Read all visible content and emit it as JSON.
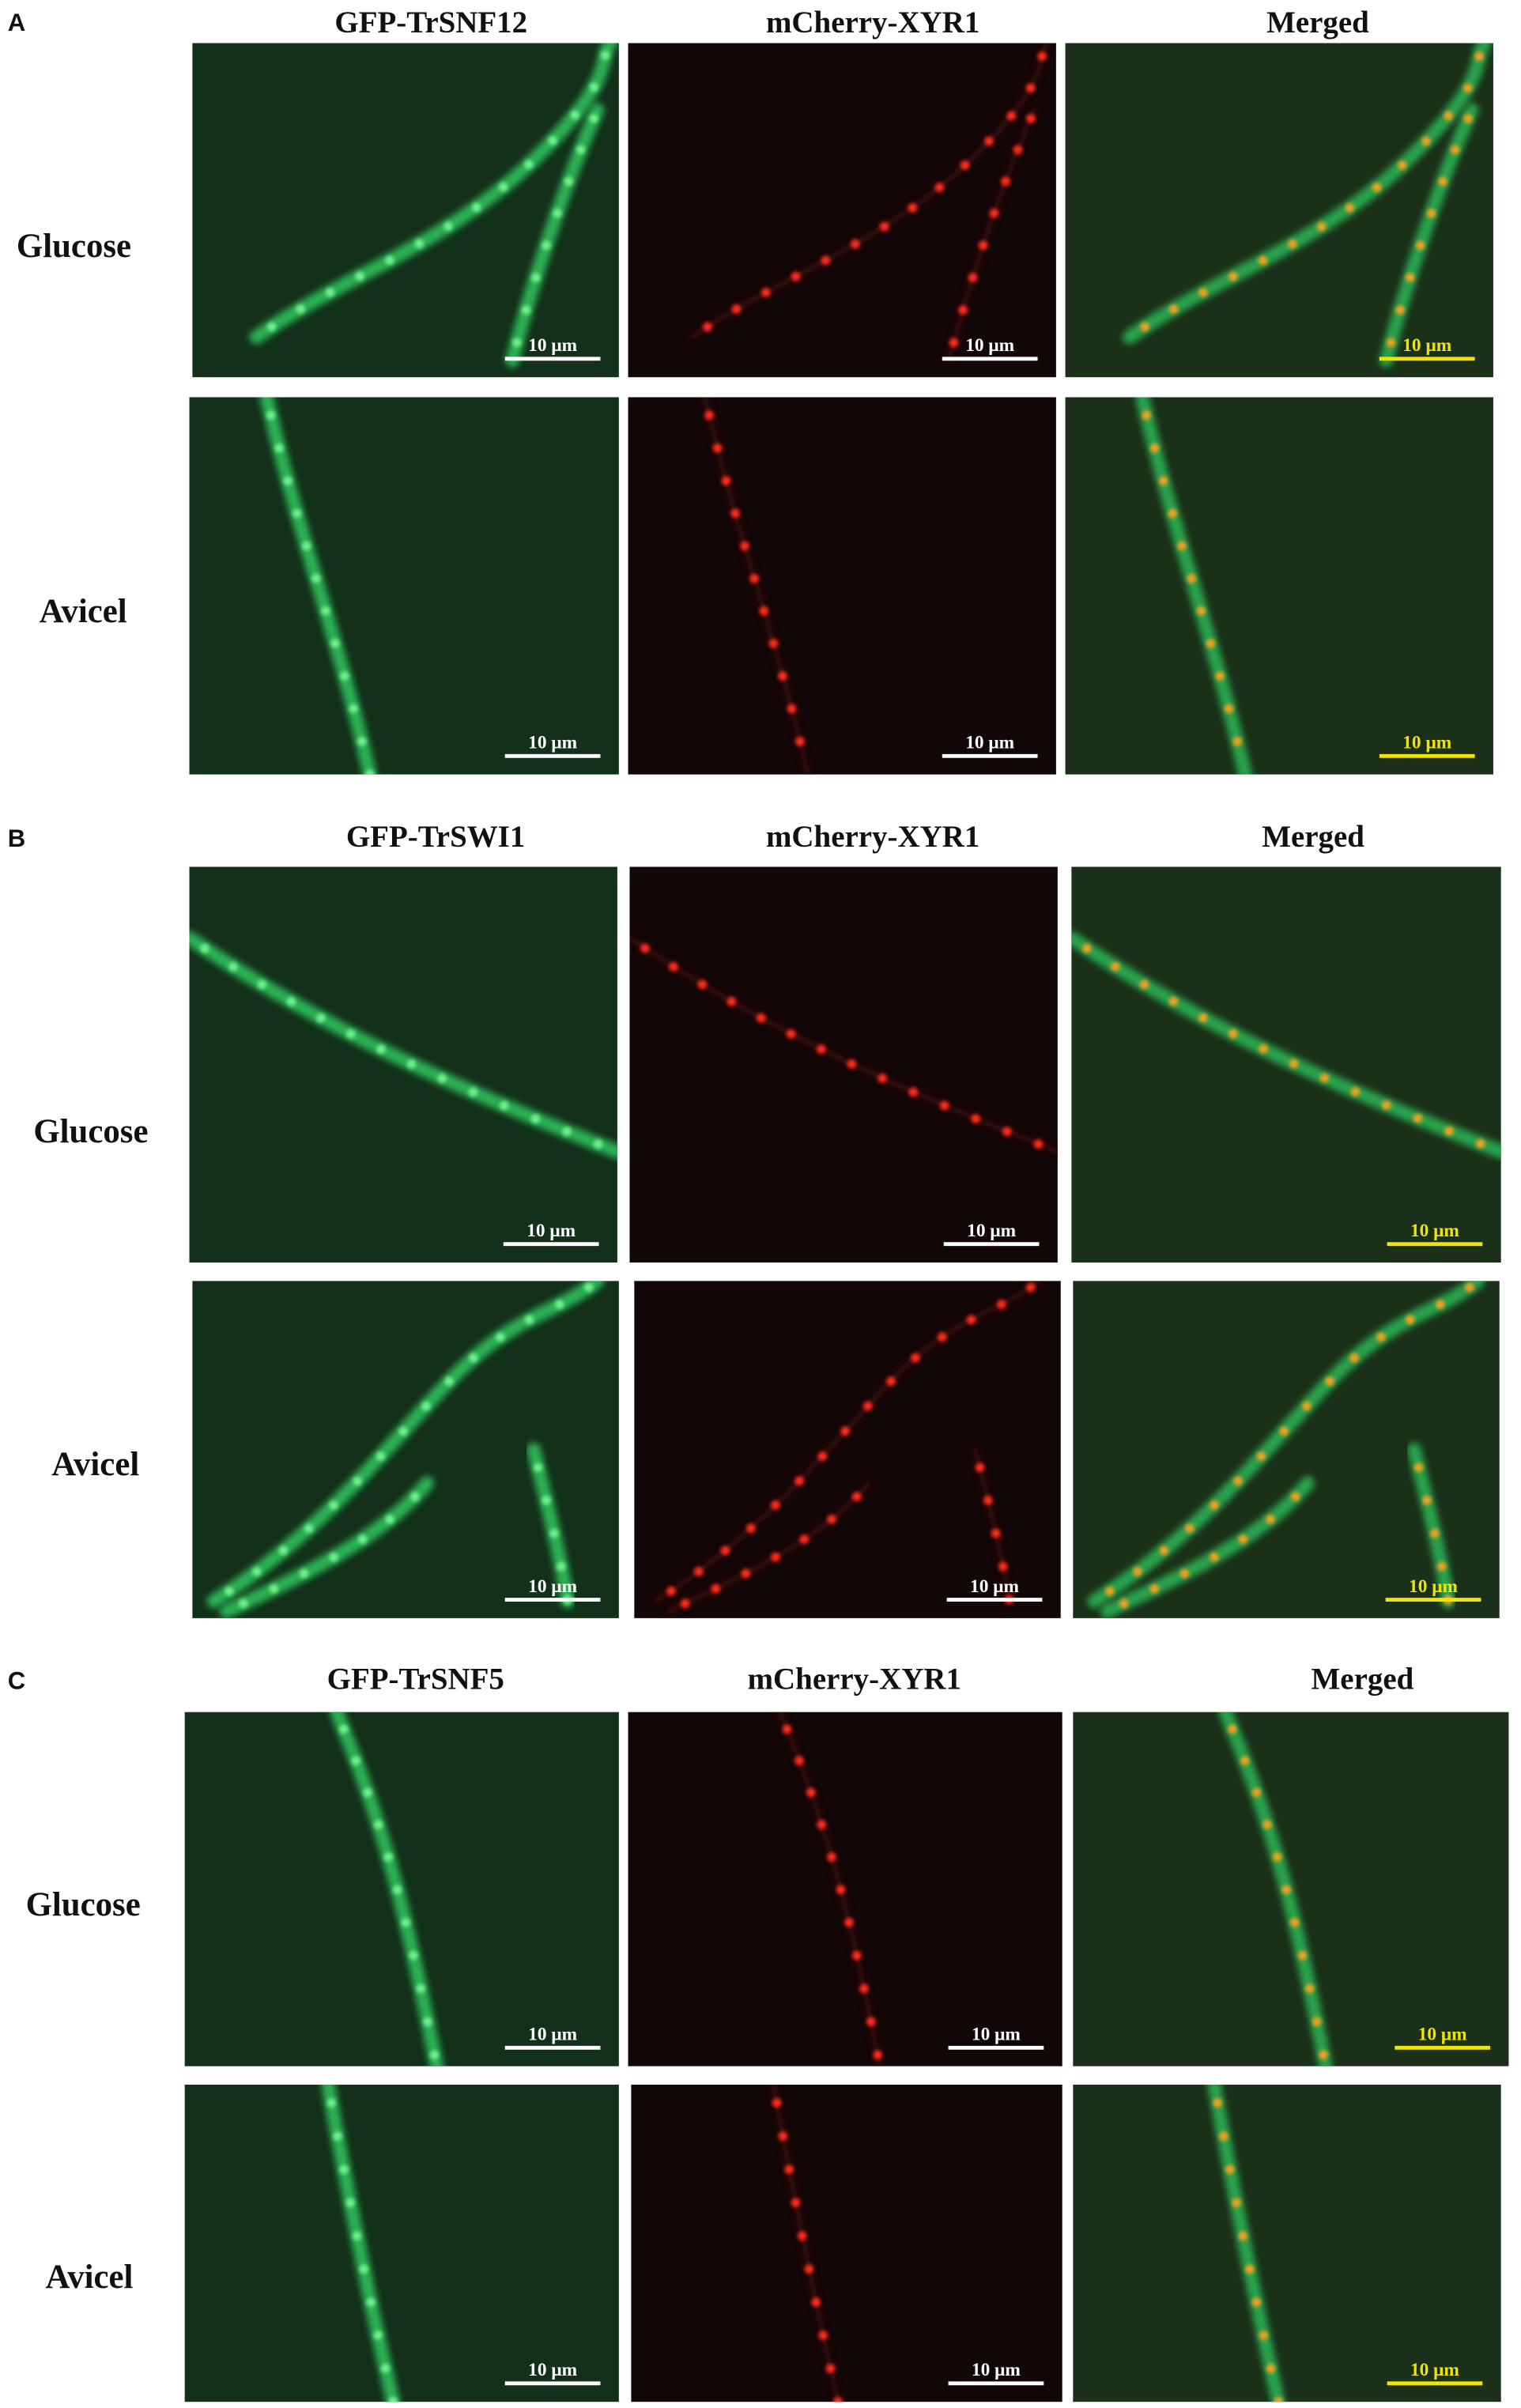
{
  "panels": [
    {
      "label": "A",
      "columns": [
        "GFP-TrSNF12",
        "mCherry-XYR1",
        "Merged"
      ],
      "rows": [
        {
          "label": "Glucose",
          "scale_bars": [
            "10 μm",
            "10 μm",
            "10 μm"
          ]
        },
        {
          "label": "Avicel",
          "scale_bars": [
            "10 μm",
            "10 μm",
            "10 μm"
          ]
        }
      ]
    },
    {
      "label": "B",
      "columns": [
        "GFP-TrSWI1",
        "mCherry-XYR1",
        "Merged"
      ],
      "rows": [
        {
          "label": "Glucose",
          "scale_bars": [
            "10 μm",
            "10 μm",
            "10 μm"
          ]
        },
        {
          "label": "Avicel",
          "scale_bars": [
            "10 μm",
            "10 μm",
            "10 μm"
          ]
        }
      ]
    },
    {
      "label": "C",
      "columns": [
        "GFP-TrSNF5",
        "mCherry-XYR1",
        "Merged"
      ],
      "rows": [
        {
          "label": "Glucose",
          "scale_bars": [
            "10 μm",
            "10 μm",
            "10 μm"
          ]
        },
        {
          "label": "Avicel",
          "scale_bars": [
            "10 μm",
            "10 μm",
            "10 μm"
          ]
        }
      ]
    }
  ]
}
